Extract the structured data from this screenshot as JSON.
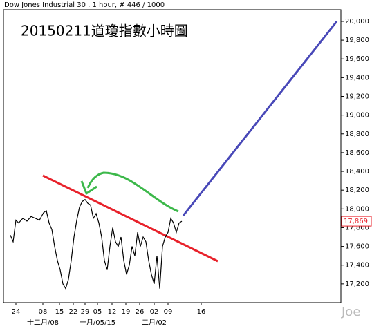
{
  "chart_data": {
    "type": "line",
    "header": "Dow Jones Industrial 30 , 1 hour, # 446 / 1000",
    "title": "20150211道瓊指數小時圖",
    "watermark": "Joe",
    "color": "#000000",
    "x": [
      10,
      14,
      18,
      22,
      28,
      34,
      40,
      46,
      52,
      58,
      62,
      66,
      70,
      74,
      78,
      82,
      86,
      90,
      94,
      98,
      102,
      106,
      110,
      114,
      118,
      122,
      126,
      130,
      134,
      138,
      142,
      146,
      150,
      154,
      158,
      162,
      166,
      170,
      174,
      178,
      182,
      186,
      190,
      194,
      198,
      202,
      206,
      210,
      214,
      218,
      222,
      226,
      230,
      234,
      238,
      242,
      246,
      250,
      254,
      258
    ],
    "values": [
      17720,
      17650,
      17880,
      17850,
      17900,
      17870,
      17920,
      17900,
      17880,
      17960,
      17980,
      17850,
      17780,
      17600,
      17450,
      17350,
      17200,
      17150,
      17250,
      17450,
      17700,
      17880,
      18020,
      18080,
      18100,
      18060,
      18040,
      17900,
      17950,
      17850,
      17700,
      17450,
      17350,
      17600,
      17800,
      17650,
      17600,
      17700,
      17450,
      17300,
      17400,
      17600,
      17500,
      17750,
      17600,
      17700,
      17650,
      17450,
      17300,
      17200,
      17500,
      17150,
      17600,
      17700,
      17750,
      17900,
      17850,
      17750,
      17850,
      17869
    ],
    "last_price": {
      "value": 17869,
      "label": "17,869"
    },
    "xlim": [
      0,
      488
    ],
    "xticks": [
      {
        "value": 18,
        "label": "24"
      },
      {
        "value": 57,
        "label": "08"
      },
      {
        "value": 81,
        "label": "15"
      },
      {
        "value": 101,
        "label": "22"
      },
      {
        "value": 118,
        "label": "29"
      },
      {
        "value": 136,
        "label": "05"
      },
      {
        "value": 157,
        "label": "12"
      },
      {
        "value": 177,
        "label": "19"
      },
      {
        "value": 197,
        "label": "26"
      },
      {
        "value": 218,
        "label": "02"
      },
      {
        "value": 238,
        "label": "09"
      },
      {
        "value": 286,
        "label": "16"
      }
    ],
    "x_period_labels": [
      {
        "value": 57,
        "label": "十二月/08"
      },
      {
        "value": 136,
        "label": "一月/05/15"
      },
      {
        "value": 218,
        "label": "二月/02"
      }
    ],
    "ylim": [
      17000,
      20125
    ],
    "yticks": [
      {
        "value": 17200,
        "label": "17,200"
      },
      {
        "value": 17400,
        "label": "17,400"
      },
      {
        "value": 17600,
        "label": "17,600"
      },
      {
        "value": 17800,
        "label": "17,800"
      },
      {
        "value": 18000,
        "label": "18,000"
      },
      {
        "value": 18200,
        "label": "18,200"
      },
      {
        "value": 18400,
        "label": "18,400"
      },
      {
        "value": 18600,
        "label": "18,600"
      },
      {
        "value": 18800,
        "label": "18,800"
      },
      {
        "value": 19000,
        "label": "19,000"
      },
      {
        "value": 19200,
        "label": "19,200"
      },
      {
        "value": 19400,
        "label": "19,400"
      },
      {
        "value": 19600,
        "label": "19,600"
      },
      {
        "value": 19800,
        "label": "19,800"
      },
      {
        "value": 20000,
        "label": "20,000"
      }
    ]
  }
}
